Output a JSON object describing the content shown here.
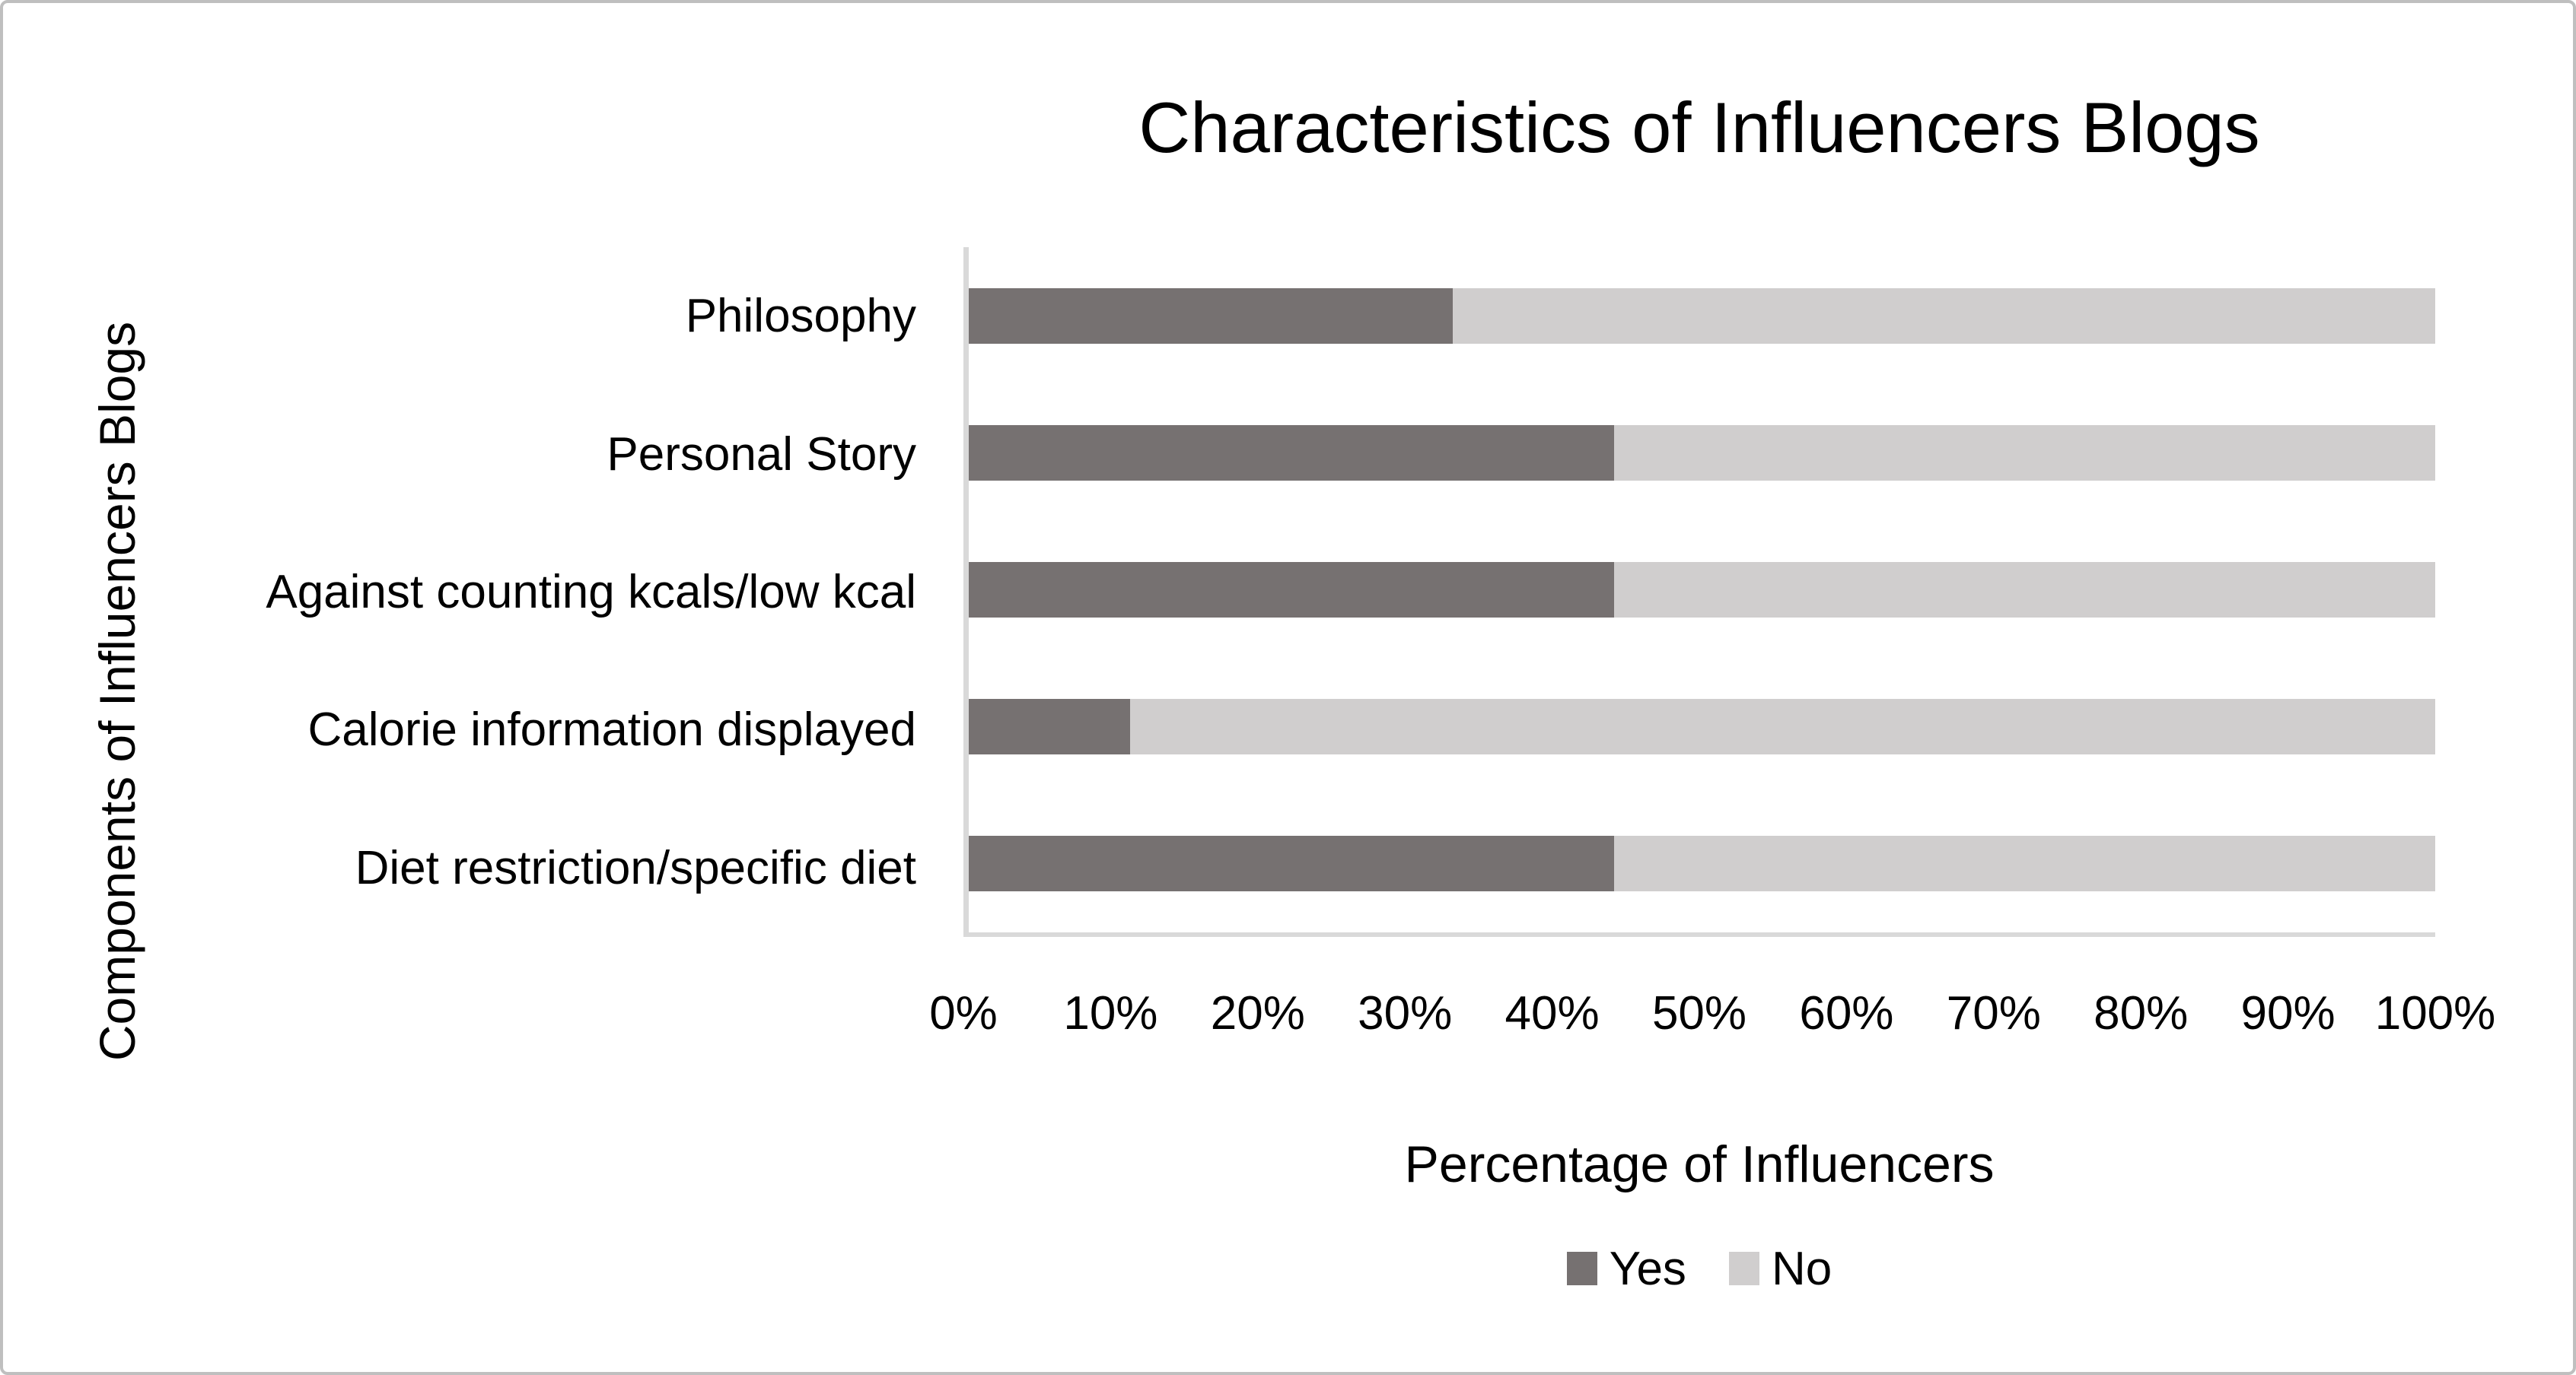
{
  "chart_data": {
    "type": "bar",
    "orientation": "horizontal",
    "stacked": true,
    "title": "Characteristics of Influencers Blogs",
    "xlabel": "Percentage of Influencers",
    "ylabel": "Components of Influencers Blogs",
    "categories": [
      "Philosophy",
      "Personal Story",
      "Against counting kcals/low kcal",
      "Calorie information displayed",
      "Diet restriction/specific diet"
    ],
    "series": [
      {
        "name": "Yes",
        "color": "#767171",
        "values": [
          33,
          44,
          44,
          11,
          44
        ]
      },
      {
        "name": "No",
        "color": "#D0CECE",
        "values": [
          67,
          56,
          56,
          89,
          56
        ]
      }
    ],
    "x_ticks": [
      "0%",
      "10%",
      "20%",
      "30%",
      "40%",
      "50%",
      "60%",
      "70%",
      "80%",
      "90%",
      "100%"
    ],
    "xlim": [
      0,
      100
    ],
    "grid": false,
    "legend_position": "bottom",
    "legend_labels": [
      "Yes",
      "No"
    ]
  },
  "colors": {
    "yes_fill": "#767171",
    "no_fill": "#D0CECE",
    "axis_line": "#D9D9D9",
    "text": "#000000",
    "frame_border": "#BFBFBF",
    "background": "#FFFFFF"
  }
}
